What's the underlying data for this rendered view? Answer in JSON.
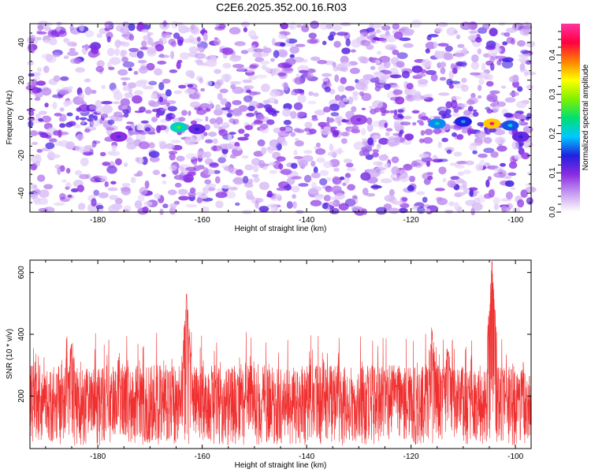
{
  "title": "C2E6.2025.352.00.16.R03",
  "chart_data": [
    {
      "type": "heatmap",
      "xlabel": "Height of straight line (km)",
      "ylabel": "Frequency (Hz)",
      "xlim": [
        -193,
        -97
      ],
      "ylim": [
        -50,
        50
      ],
      "xticks": [
        -180,
        -160,
        -140,
        -120,
        -100
      ],
      "yticks": [
        -40,
        -20,
        0,
        20,
        40
      ],
      "colorbar": {
        "label": "Normalized spectral amplitude",
        "range": [
          0.0,
          0.48
        ],
        "ticks": [
          0.0,
          0.1,
          0.2,
          0.3,
          0.4
        ],
        "colors": [
          "#ffffff",
          "#c59bf2",
          "#8a2be2",
          "#2020e0",
          "#00c8ff",
          "#00e070",
          "#80f000",
          "#ffff00",
          "#ff8000",
          "#ff0040",
          "#ff33a0"
        ]
      },
      "hotspots": [
        {
          "x": -176,
          "y": -10,
          "value": 0.12
        },
        {
          "x": -164.5,
          "y": -5,
          "value": 0.27
        },
        {
          "x": -161,
          "y": -6,
          "value": 0.14
        },
        {
          "x": -115,
          "y": -3,
          "value": 0.22
        },
        {
          "x": -110,
          "y": -2,
          "value": 0.18
        },
        {
          "x": -104.5,
          "y": -3,
          "value": 0.45
        },
        {
          "x": -101,
          "y": -4,
          "value": 0.2
        },
        {
          "x": -99,
          "y": -10,
          "value": 0.14
        },
        {
          "x": -130,
          "y": -1,
          "value": 0.1
        }
      ]
    },
    {
      "type": "line",
      "xlabel": "Height of straight line (km)",
      "ylabel": "SNR (10 * v/v)",
      "xlim": [
        -193,
        -97
      ],
      "ylim": [
        30,
        640
      ],
      "xticks": [
        -180,
        -160,
        -140,
        -120,
        -100
      ],
      "yticks": [
        200,
        400,
        600
      ],
      "series": [
        {
          "name": "SNR",
          "color": "#f03030",
          "baseline": [
            40,
            300
          ],
          "peaks": [
            {
              "x": -163,
              "value": 530
            },
            {
              "x": -104.5,
              "value": 635
            },
            {
              "x": -116,
              "value": 440
            },
            {
              "x": -185,
              "value": 400
            },
            {
              "x": -113,
              "value": 380
            }
          ]
        }
      ]
    }
  ]
}
